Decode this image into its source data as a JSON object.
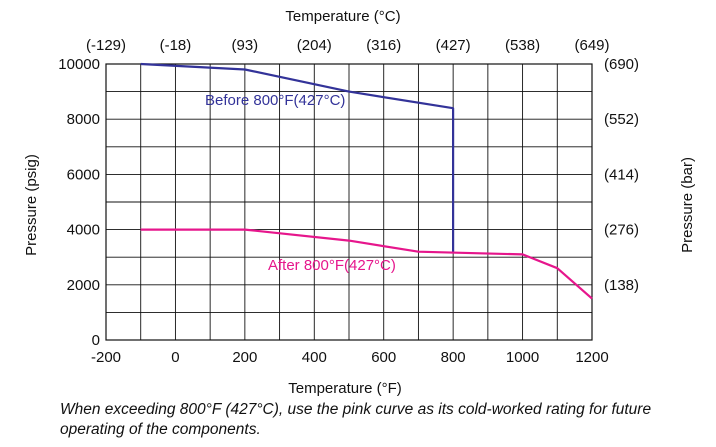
{
  "chart_data": {
    "type": "line",
    "top_axis_title": "Temperature (°C)",
    "xlabel": "Temperature (°F)",
    "ylabel": "Pressure (psig)",
    "y2label": "Pressure (bar)",
    "xlim": [
      -200,
      1200
    ],
    "ylim": [
      0,
      10000
    ],
    "x_ticks": [
      -200,
      0,
      200,
      400,
      600,
      800,
      1000,
      1200
    ],
    "y_ticks": [
      0,
      2000,
      4000,
      6000,
      8000,
      10000
    ],
    "top_ticks": [
      {
        "x": -200,
        "label": "(-129)"
      },
      {
        "x": 0,
        "label": "(-18)"
      },
      {
        "x": 200,
        "label": "(93)"
      },
      {
        "x": 400,
        "label": "(204)"
      },
      {
        "x": 600,
        "label": "(316)"
      },
      {
        "x": 800,
        "label": "(427)"
      },
      {
        "x": 1000,
        "label": "(538)"
      },
      {
        "x": 1200,
        "label": "(649)"
      }
    ],
    "right_ticks": [
      {
        "y": 10000,
        "label": "(690)"
      },
      {
        "y": 8000,
        "label": "(552)"
      },
      {
        "y": 6000,
        "label": "(414)"
      },
      {
        "y": 4000,
        "label": "(276)"
      },
      {
        "y": 2000,
        "label": "(138)"
      }
    ],
    "grid": true,
    "series": [
      {
        "name": "Before 800°F(427°C)",
        "color": "#333399",
        "x": [
          -100,
          200,
          500,
          800,
          800
        ],
        "y": [
          10000,
          9800,
          9000,
          8400,
          3200
        ]
      },
      {
        "name": "After 800°F(427°C)",
        "color": "#e6168c",
        "x": [
          -100,
          200,
          500,
          700,
          1000,
          1100,
          1200
        ],
        "y": [
          4000,
          4000,
          3600,
          3200,
          3100,
          2600,
          1500
        ]
      }
    ]
  },
  "caption": "When exceeding 800°F (427°C), use the pink curve as its cold-worked rating for future operating of the components."
}
